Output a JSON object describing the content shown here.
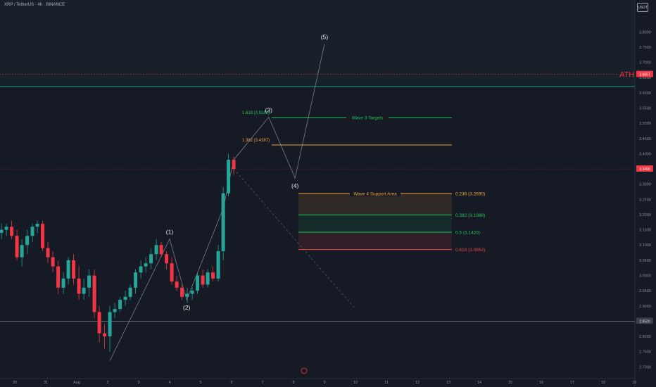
{
  "header": {
    "symbol": "XRP / TetherUS · 4h · BINANCE",
    "currency_button": "USDT"
  },
  "colors": {
    "up": "#26a69a",
    "down": "#f23645",
    "background": "#151a24",
    "axis_text": "#8a8f98",
    "fib_green": "#22c55e",
    "fib_orange": "#f7a440",
    "fib_red": "#ef4444",
    "ath": "#f23645"
  },
  "chart_data": {
    "type": "candlestick",
    "ylim": [
      2.68,
      3.87
    ],
    "y_ticks": [
      "3.8000",
      "3.7500",
      "3.7000",
      "3.6500",
      "3.6000",
      "3.5500",
      "3.5000",
      "3.4500",
      "3.4000",
      "3.3500",
      "3.3000",
      "3.2500",
      "3.2000",
      "3.1500",
      "3.1000",
      "3.0500",
      "3.0000",
      "2.9500",
      "2.9000",
      "2.8500",
      "2.8000",
      "2.7500",
      "2.7000"
    ],
    "x_ticks": [
      {
        "label": "30",
        "x": -2
      },
      {
        "label": "31",
        "x": -1
      },
      {
        "label": "Aug",
        "x": 0
      },
      {
        "label": "2",
        "x": 1
      },
      {
        "label": "3",
        "x": 2
      },
      {
        "label": "4",
        "x": 3
      },
      {
        "label": "5",
        "x": 4
      },
      {
        "label": "6",
        "x": 5
      },
      {
        "label": "7",
        "x": 6
      },
      {
        "label": "8",
        "x": 7
      },
      {
        "label": "9",
        "x": 8
      },
      {
        "label": "10",
        "x": 9
      },
      {
        "label": "11",
        "x": 10
      },
      {
        "label": "12",
        "x": 11
      },
      {
        "label": "13",
        "x": 12
      },
      {
        "label": "14",
        "x": 13
      },
      {
        "label": "15",
        "x": 14
      },
      {
        "label": "16",
        "x": 15
      },
      {
        "label": "17",
        "x": 16
      },
      {
        "label": "18",
        "x": 17
      },
      {
        "label": "19",
        "x": 18
      }
    ],
    "candles": [
      {
        "x": -2.6,
        "o": 3.12,
        "h": 3.15,
        "l": 3.09,
        "c": 3.14
      },
      {
        "x": -2.43,
        "o": 3.14,
        "h": 3.17,
        "l": 3.12,
        "c": 3.15
      },
      {
        "x": -2.27,
        "o": 3.15,
        "h": 3.17,
        "l": 3.13,
        "c": 3.16
      },
      {
        "x": -2.1,
        "o": 3.16,
        "h": 3.18,
        "l": 3.12,
        "c": 3.13
      },
      {
        "x": -1.93,
        "o": 3.13,
        "h": 3.15,
        "l": 3.05,
        "c": 3.06
      },
      {
        "x": -1.77,
        "o": 3.06,
        "h": 3.12,
        "l": 3.03,
        "c": 3.1
      },
      {
        "x": -1.6,
        "o": 3.1,
        "h": 3.15,
        "l": 3.07,
        "c": 3.13
      },
      {
        "x": -1.43,
        "o": 3.13,
        "h": 3.17,
        "l": 3.11,
        "c": 3.16
      },
      {
        "x": -1.27,
        "o": 3.16,
        "h": 3.18,
        "l": 3.14,
        "c": 3.17
      },
      {
        "x": -1.1,
        "o": 3.17,
        "h": 3.18,
        "l": 3.08,
        "c": 3.09
      },
      {
        "x": -0.93,
        "o": 3.09,
        "h": 3.11,
        "l": 3.04,
        "c": 3.06
      },
      {
        "x": -0.77,
        "o": 3.06,
        "h": 3.08,
        "l": 3.01,
        "c": 3.03
      },
      {
        "x": -0.6,
        "o": 3.03,
        "h": 3.05,
        "l": 2.94,
        "c": 2.96
      },
      {
        "x": -0.43,
        "o": 2.96,
        "h": 3.01,
        "l": 2.94,
        "c": 2.99
      },
      {
        "x": -0.27,
        "o": 2.99,
        "h": 3.06,
        "l": 2.97,
        "c": 3.05
      },
      {
        "x": -0.1,
        "o": 3.05,
        "h": 3.07,
        "l": 2.97,
        "c": 2.99
      },
      {
        "x": 0.07,
        "o": 2.99,
        "h": 3.03,
        "l": 2.92,
        "c": 2.94
      },
      {
        "x": 0.23,
        "o": 2.94,
        "h": 2.99,
        "l": 2.92,
        "c": 2.96
      },
      {
        "x": 0.4,
        "o": 2.96,
        "h": 3.02,
        "l": 2.93,
        "c": 3.0
      },
      {
        "x": 0.57,
        "o": 3.0,
        "h": 3.02,
        "l": 2.86,
        "c": 2.88
      },
      {
        "x": 0.73,
        "o": 2.88,
        "h": 2.9,
        "l": 2.78,
        "c": 2.81
      },
      {
        "x": 0.9,
        "o": 2.81,
        "h": 2.84,
        "l": 2.76,
        "c": 2.8
      },
      {
        "x": 1.07,
        "o": 2.8,
        "h": 2.9,
        "l": 2.75,
        "c": 2.88
      },
      {
        "x": 1.23,
        "o": 2.88,
        "h": 2.91,
        "l": 2.86,
        "c": 2.89
      },
      {
        "x": 1.4,
        "o": 2.89,
        "h": 2.93,
        "l": 2.88,
        "c": 2.92
      },
      {
        "x": 1.57,
        "o": 2.92,
        "h": 2.95,
        "l": 2.9,
        "c": 2.93
      },
      {
        "x": 1.73,
        "o": 2.93,
        "h": 2.97,
        "l": 2.92,
        "c": 2.96
      },
      {
        "x": 1.9,
        "o": 2.96,
        "h": 3.02,
        "l": 2.94,
        "c": 3.01
      },
      {
        "x": 2.07,
        "o": 3.01,
        "h": 3.05,
        "l": 2.99,
        "c": 3.03
      },
      {
        "x": 2.23,
        "o": 3.03,
        "h": 3.06,
        "l": 3.01,
        "c": 3.04
      },
      {
        "x": 2.4,
        "o": 3.04,
        "h": 3.09,
        "l": 3.02,
        "c": 3.07
      },
      {
        "x": 2.57,
        "o": 3.07,
        "h": 3.12,
        "l": 3.05,
        "c": 3.1
      },
      {
        "x": 2.73,
        "o": 3.1,
        "h": 3.11,
        "l": 3.06,
        "c": 3.07
      },
      {
        "x": 2.9,
        "o": 3.07,
        "h": 3.08,
        "l": 3.02,
        "c": 3.04
      },
      {
        "x": 3.07,
        "o": 3.04,
        "h": 3.06,
        "l": 2.97,
        "c": 2.98
      },
      {
        "x": 3.23,
        "o": 2.98,
        "h": 3.0,
        "l": 2.95,
        "c": 2.96
      },
      {
        "x": 3.4,
        "o": 2.96,
        "h": 2.97,
        "l": 2.92,
        "c": 2.93
      },
      {
        "x": 3.57,
        "o": 2.93,
        "h": 2.96,
        "l": 2.91,
        "c": 2.94
      },
      {
        "x": 3.73,
        "o": 2.94,
        "h": 2.96,
        "l": 2.92,
        "c": 2.95
      },
      {
        "x": 3.9,
        "o": 2.95,
        "h": 3.01,
        "l": 2.94,
        "c": 3.0
      },
      {
        "x": 4.07,
        "o": 3.0,
        "h": 3.02,
        "l": 2.96,
        "c": 2.97
      },
      {
        "x": 4.23,
        "o": 2.97,
        "h": 3.02,
        "l": 2.96,
        "c": 3.01
      },
      {
        "x": 4.4,
        "o": 3.01,
        "h": 3.03,
        "l": 2.98,
        "c": 2.99
      },
      {
        "x": 4.57,
        "o": 2.99,
        "h": 3.1,
        "l": 2.98,
        "c": 3.08
      },
      {
        "x": 4.73,
        "o": 3.08,
        "h": 3.29,
        "l": 3.05,
        "c": 3.27
      },
      {
        "x": 4.9,
        "o": 3.27,
        "h": 3.4,
        "l": 3.26,
        "c": 3.38
      },
      {
        "x": 5.07,
        "o": 3.38,
        "h": 3.39,
        "l": 3.33,
        "c": 3.35
      }
    ],
    "current_price": {
      "value": 3.35,
      "label": "3.3490"
    },
    "ath": {
      "value": 3.6607,
      "label": "3.6607",
      "text": "ATH"
    },
    "resistance_line": 3.62,
    "support_line": 2.85,
    "support_label": "2.8500",
    "fib_targets": [
      {
        "level": 3.5182,
        "label": "1.618 (3.5182)",
        "color": "green"
      },
      {
        "level": 3.4287,
        "label": "1.382 (3.4287)",
        "color": "orange"
      }
    ],
    "targets_label": "Wave 3 Targets",
    "support_area_label": "Wave 4 Support Area",
    "fib_support": [
      {
        "level": 3.269,
        "label": "0.236 (3.2690)",
        "color": "orange"
      },
      {
        "level": 3.1988,
        "label": "0.382 (3.1988)",
        "color": "green"
      },
      {
        "level": 3.142,
        "label": "0.5 (3.1420)",
        "color": "green"
      },
      {
        "level": 3.0852,
        "label": "0.618 (3.0852)",
        "color": "red"
      }
    ],
    "waves": [
      {
        "label": "(1)",
        "x": 3.0,
        "y": 3.12,
        "pos": "above"
      },
      {
        "label": "(2)",
        "x": 3.55,
        "y": 2.92,
        "pos": "below"
      },
      {
        "label": "(3)",
        "x": 6.2,
        "y": 3.52,
        "pos": "above"
      },
      {
        "label": "(4)",
        "x": 7.05,
        "y": 3.32,
        "pos": "below"
      },
      {
        "label": "(5)",
        "x": 8.0,
        "y": 3.76,
        "pos": "above"
      }
    ],
    "projection_path": [
      {
        "x": 1.07,
        "y": 2.72
      },
      {
        "x": 3.0,
        "y": 3.12
      },
      {
        "x": 3.55,
        "y": 2.92
      },
      {
        "x": 4.73,
        "y": 3.22
      },
      {
        "x": 5.07,
        "y": 3.38
      },
      {
        "x": 6.2,
        "y": 3.52
      },
      {
        "x": 7.05,
        "y": 3.32
      },
      {
        "x": 8.0,
        "y": 3.76
      }
    ],
    "decline_path": [
      {
        "x": 5.07,
        "y": 3.35
      },
      {
        "x": 9.0,
        "y": 2.89
      }
    ],
    "grid": false,
    "legend": "none"
  }
}
